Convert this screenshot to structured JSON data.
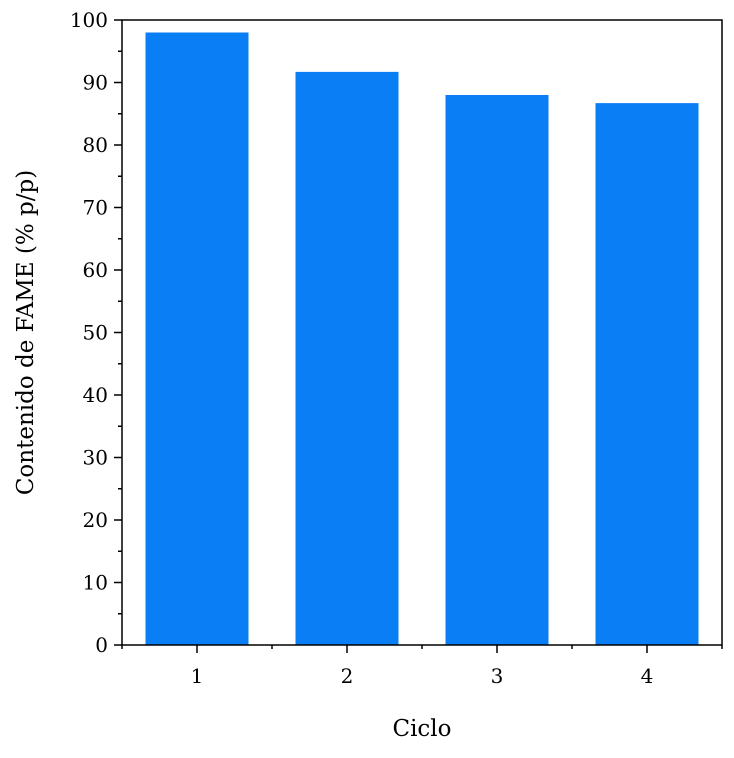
{
  "chart_data": {
    "type": "bar",
    "categories": [
      "1",
      "2",
      "3",
      "4"
    ],
    "values": [
      98.0,
      91.7,
      88.0,
      86.7
    ],
    "xlabel": "Ciclo",
    "ylabel": "Contenido de FAME (% p/p)",
    "ylim": [
      0,
      100
    ],
    "yticks": [
      "0",
      "10",
      "20",
      "30",
      "40",
      "50",
      "60",
      "70",
      "80",
      "90",
      "100"
    ],
    "bar_color": "#0a7ff5",
    "grid": false
  }
}
